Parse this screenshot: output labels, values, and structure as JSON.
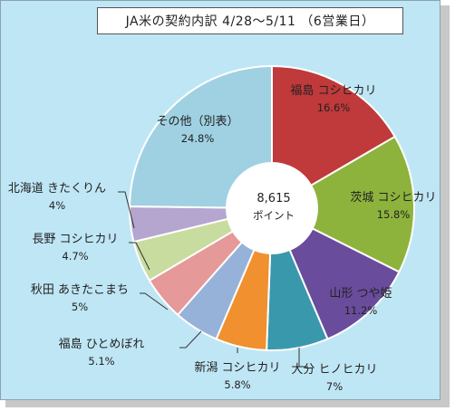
{
  "title": "JA米の契約内訳 4/28〜5/11 （6営業日）",
  "center": {
    "value": "8,615",
    "unit": "ポイント"
  },
  "chart_data": {
    "type": "pie",
    "title": "JA米の契約内訳 4/28〜5/11 （6営業日）",
    "total": 8615,
    "unit": "ポイント",
    "donut": true,
    "slices": [
      {
        "label": "福島 コシヒカリ",
        "value": 16.6,
        "pct_label": "16.6%",
        "color": "#c0393b"
      },
      {
        "label": "茨城 コシヒカリ",
        "value": 15.8,
        "pct_label": "15.8%",
        "color": "#8db33c"
      },
      {
        "label": "山形 つや姫",
        "value": 11.2,
        "pct_label": "11.2%",
        "color": "#6a4c9c"
      },
      {
        "label": "大分 ヒノヒカリ",
        "value": 7,
        "pct_label": "7%",
        "color": "#3a98ad"
      },
      {
        "label": "新潟 コシヒカリ",
        "value": 5.8,
        "pct_label": "5.8%",
        "color": "#f0902e"
      },
      {
        "label": "福島 ひとめぼれ",
        "value": 5.1,
        "pct_label": "5.1%",
        "color": "#97b2d8"
      },
      {
        "label": "秋田 あきたこまち",
        "value": 5,
        "pct_label": "5%",
        "color": "#e59998"
      },
      {
        "label": "長野 コシヒカリ",
        "value": 4.7,
        "pct_label": "4.7%",
        "color": "#c9dca0"
      },
      {
        "label": "北海道 きたくりん",
        "value": 4,
        "pct_label": "4%",
        "color": "#b4a6cf"
      },
      {
        "label": "その他（別表）",
        "value": 24.8,
        "pct_label": "24.8%",
        "color": "#9fd1e2"
      }
    ]
  }
}
